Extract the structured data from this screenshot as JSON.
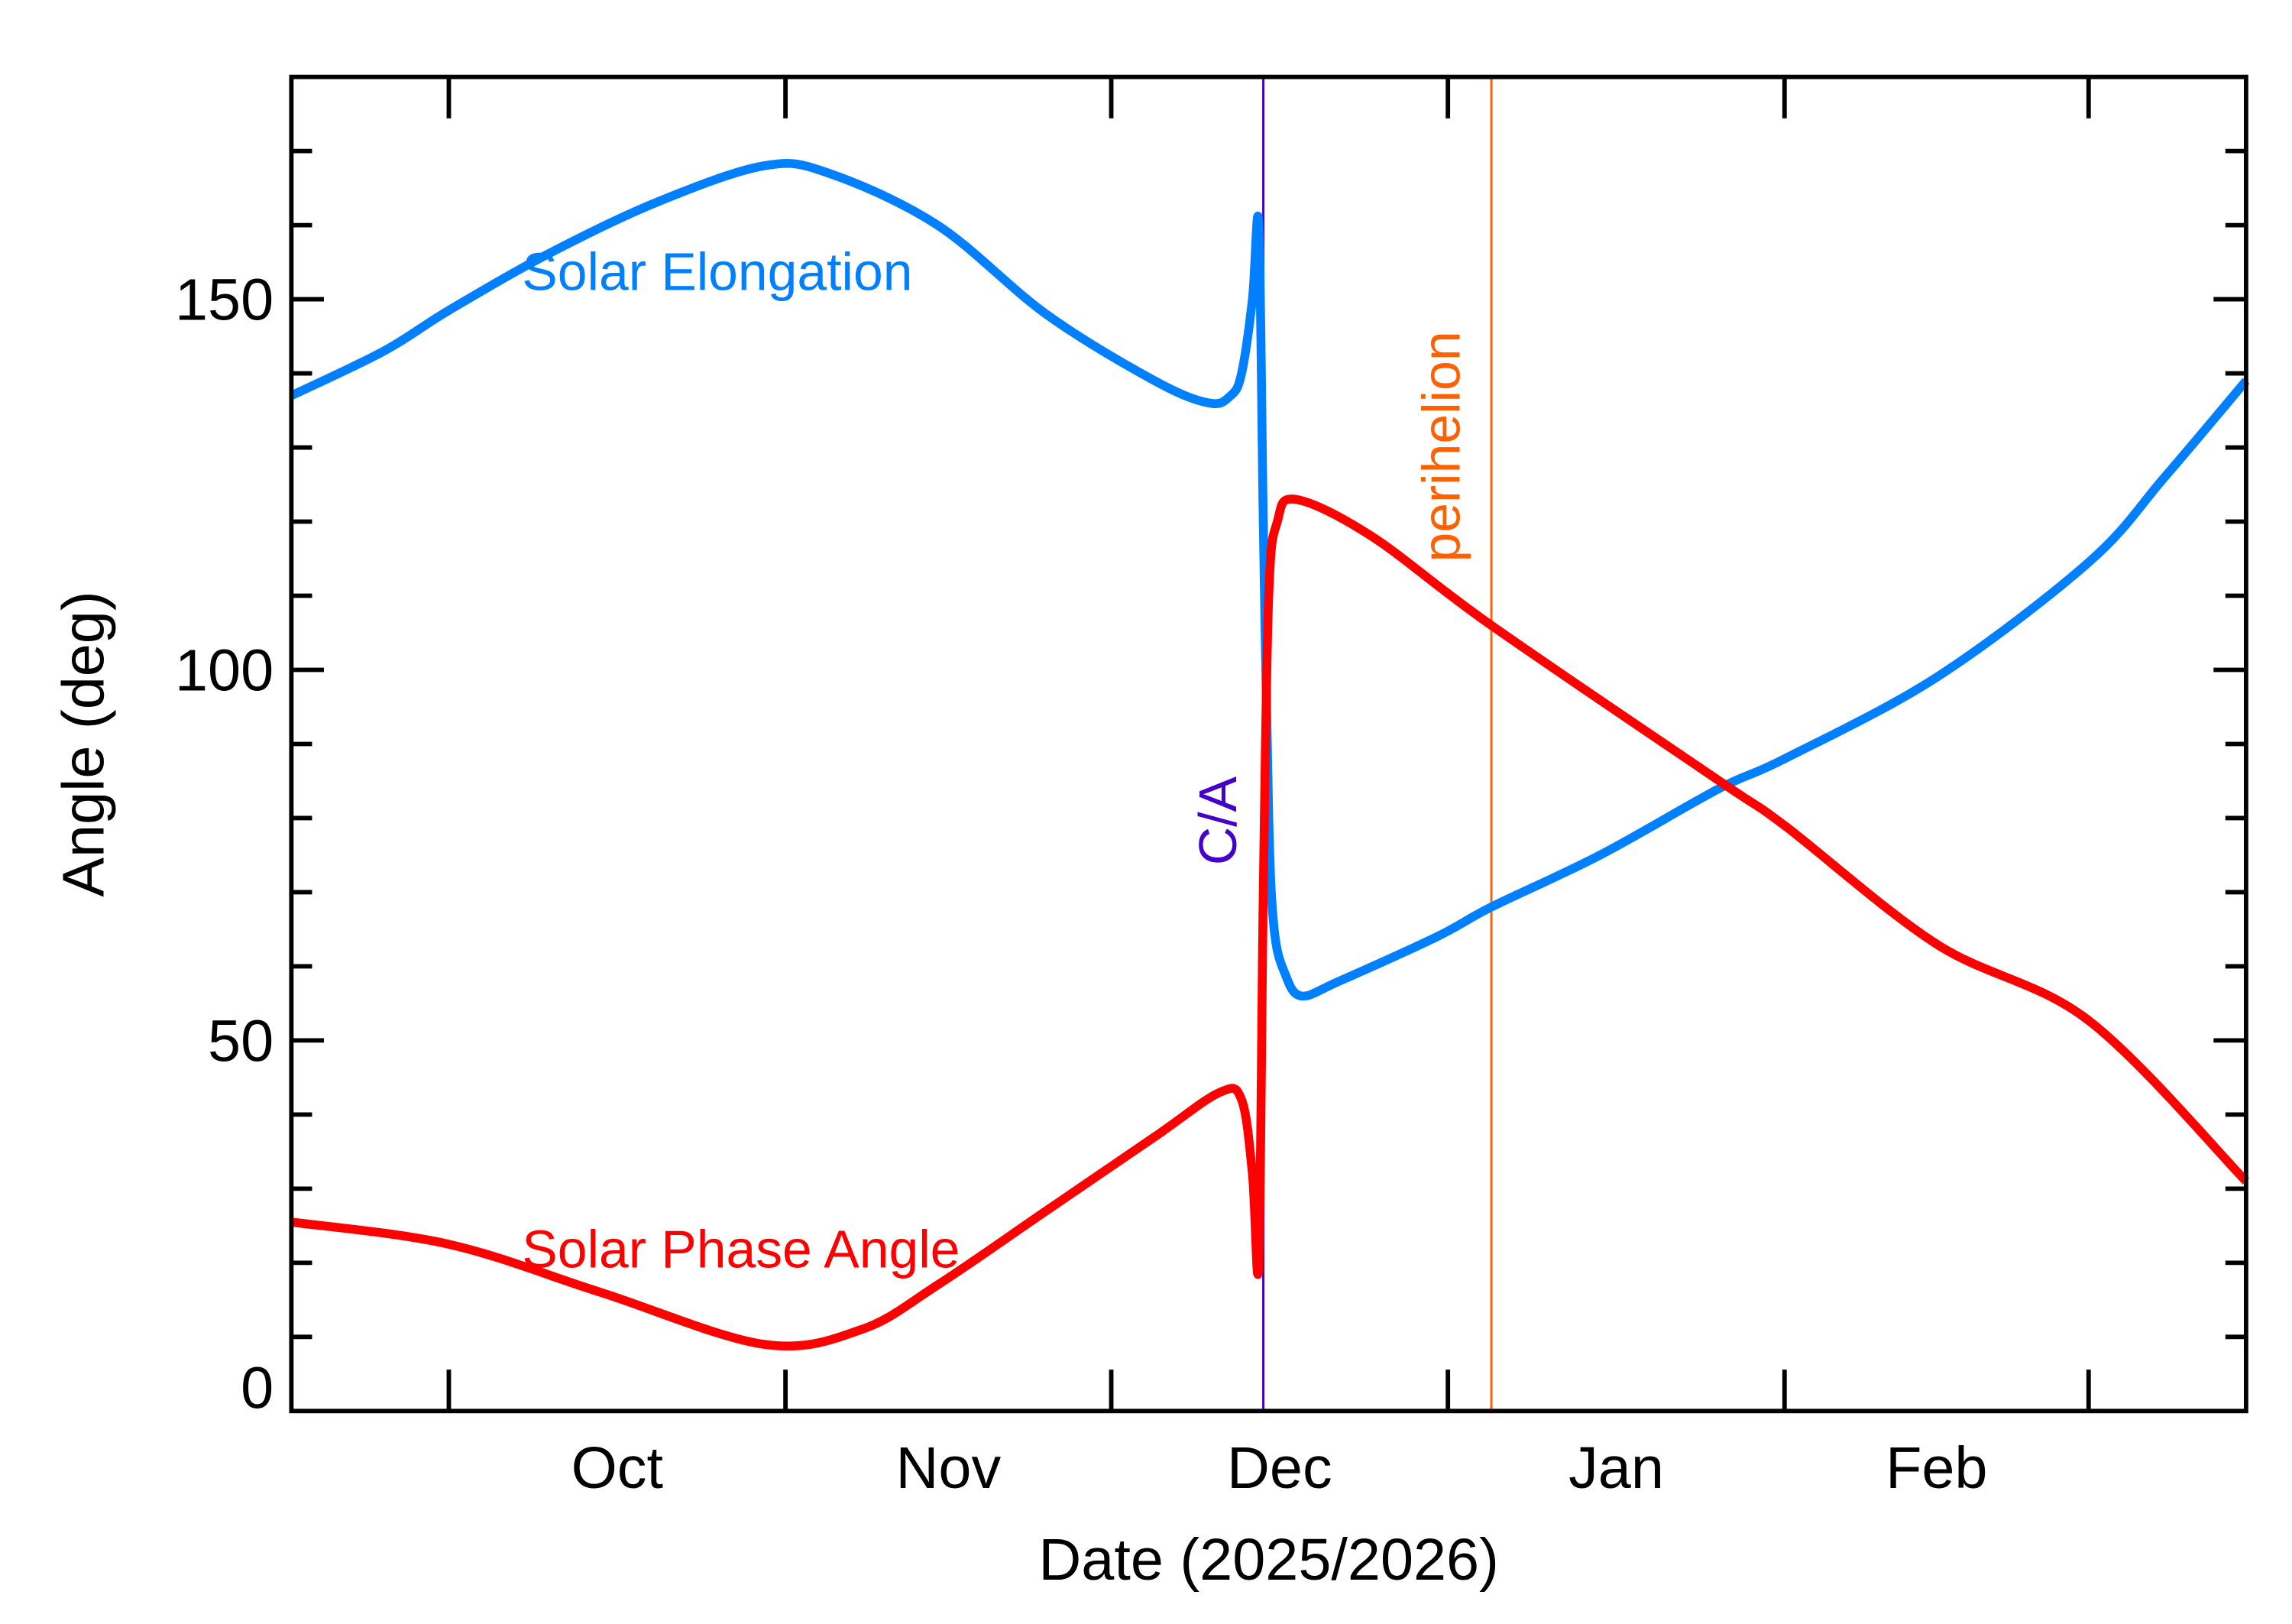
{
  "chart_data": {
    "type": "line",
    "xlabel": "Date (2025/2026)",
    "ylabel": "Angle (deg)",
    "xlim": [
      "2025-09-16T12:00",
      "2026-03-15T12:00"
    ],
    "ylim": [
      0,
      180
    ],
    "x_tick_labels": [
      "Oct",
      "Nov",
      "Dec",
      "Jan",
      "Feb"
    ],
    "x_major_ticks": [
      "2025-10-01",
      "2025-11-01",
      "2025-12-01",
      "2026-01-01",
      "2026-02-01",
      "2026-03-01"
    ],
    "y_ticks": [
      0,
      50,
      100,
      150
    ],
    "y_minor_step": 10,
    "grid": false,
    "series": [
      {
        "name": "Solar Elongation",
        "color": "#0080ff",
        "points": [
          [
            "2025-09-16T12:00",
            137
          ],
          [
            "2025-09-25",
            143
          ],
          [
            "2025-10-01",
            148.5
          ],
          [
            "2025-10-10",
            156
          ],
          [
            "2025-10-20",
            163
          ],
          [
            "2025-10-30",
            168
          ],
          [
            "2025-11-05",
            167
          ],
          [
            "2025-11-15",
            160
          ],
          [
            "2025-11-25",
            148
          ],
          [
            "2025-12-05",
            139
          ],
          [
            "2025-12-10",
            136
          ],
          [
            "2025-12-12",
            137
          ],
          [
            "2025-12-13",
            140
          ],
          [
            "2025-12-14",
            150
          ],
          [
            "2025-12-14T14:00",
            160
          ],
          [
            "2025-12-15T00:00",
            120
          ],
          [
            "2025-12-15T12:00",
            80
          ],
          [
            "2025-12-16",
            65
          ],
          [
            "2025-12-17",
            59
          ],
          [
            "2025-12-18T12:00",
            56
          ],
          [
            "2025-12-22",
            58
          ],
          [
            "2025-12-31",
            64
          ],
          [
            "2026-01-05",
            68
          ],
          [
            "2026-01-15",
            75
          ],
          [
            "2026-01-26",
            84
          ],
          [
            "2026-02-01",
            88
          ],
          [
            "2026-02-15",
            99
          ],
          [
            "2026-03-01",
            114.5
          ],
          [
            "2026-03-08",
            126
          ],
          [
            "2026-03-15T12:00",
            139
          ]
        ]
      },
      {
        "name": "Solar Phase Angle",
        "color": "#ff0000",
        "points": [
          [
            "2025-09-16T12:00",
            25.5
          ],
          [
            "2025-10-01",
            22.5
          ],
          [
            "2025-10-15",
            16
          ],
          [
            "2025-10-30",
            9
          ],
          [
            "2025-11-08",
            11
          ],
          [
            "2025-11-15",
            17
          ],
          [
            "2025-11-25",
            27
          ],
          [
            "2025-12-05",
            37
          ],
          [
            "2025-12-11",
            43
          ],
          [
            "2025-12-13",
            42
          ],
          [
            "2025-12-14",
            32
          ],
          [
            "2025-12-14T14:00",
            20
          ],
          [
            "2025-12-15T00:00",
            70
          ],
          [
            "2025-12-15T12:00",
            110
          ],
          [
            "2025-12-16T07:00",
            120
          ],
          [
            "2025-12-18",
            123
          ],
          [
            "2025-12-25",
            118
          ],
          [
            "2026-01-05",
            106
          ],
          [
            "2026-01-26",
            85
          ],
          [
            "2026-02-01",
            79
          ],
          [
            "2026-02-15",
            63
          ],
          [
            "2026-03-01",
            52.7
          ],
          [
            "2026-03-15T12:00",
            31
          ]
        ]
      }
    ],
    "vertical_markers": [
      {
        "label": "C/A",
        "date": "2025-12-15T00:00",
        "color": "#4400cc"
      },
      {
        "label": "perihelion",
        "date": "2026-01-05",
        "color": "#ff6000"
      }
    ]
  }
}
